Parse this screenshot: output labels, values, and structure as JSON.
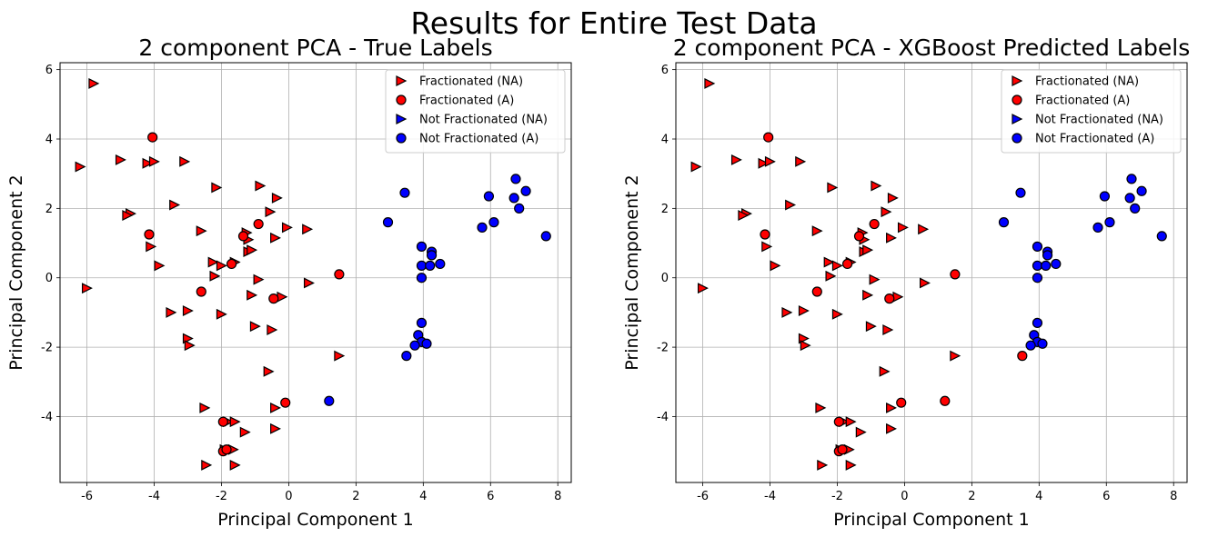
{
  "suptitle": "Results for Entire Test Data",
  "colors": {
    "red": "#ff0000",
    "blue": "#0000ff",
    "grid": "#b0b0b0",
    "edge": "#000000"
  },
  "chart_data": [
    {
      "type": "scatter",
      "title": "2 component PCA - True Labels",
      "xlabel": "Principal Component 1",
      "ylabel": "Principal Component 2",
      "xlim": [
        -6.8,
        8.4
      ],
      "ylim": [
        -5.9,
        6.2
      ],
      "xticks": [
        -6,
        -4,
        -2,
        0,
        2,
        4,
        6,
        8
      ],
      "yticks": [
        -4,
        -2,
        0,
        2,
        4,
        6
      ],
      "grid": true,
      "legend_position": "top-right",
      "series": [
        {
          "name": "Fractionated (NA)",
          "marker": "triangle-right",
          "color": "red",
          "points": [
            [
              -5.8,
              5.6
            ],
            [
              -6.2,
              3.2
            ],
            [
              -5.0,
              3.4
            ],
            [
              -4.2,
              3.3
            ],
            [
              -4.0,
              3.35
            ],
            [
              -3.1,
              3.35
            ],
            [
              -4.7,
              1.85
            ],
            [
              -4.8,
              1.8
            ],
            [
              -3.4,
              2.1
            ],
            [
              -2.15,
              2.6
            ],
            [
              -0.85,
              2.65
            ],
            [
              -0.35,
              2.3
            ],
            [
              -4.1,
              0.9
            ],
            [
              -3.85,
              0.35
            ],
            [
              -2.6,
              1.35
            ],
            [
              -2.25,
              0.45
            ],
            [
              -2.0,
              0.35
            ],
            [
              -2.2,
              0.05
            ],
            [
              -1.6,
              0.45
            ],
            [
              -1.25,
              1.3
            ],
            [
              -1.2,
              1.1
            ],
            [
              -1.2,
              0.75
            ],
            [
              -1.1,
              0.8
            ],
            [
              -0.55,
              1.9
            ],
            [
              -0.4,
              1.15
            ],
            [
              -0.05,
              1.45
            ],
            [
              0.55,
              1.4
            ],
            [
              -6.0,
              -0.3
            ],
            [
              -0.9,
              -0.05
            ],
            [
              0.6,
              -0.15
            ],
            [
              -1.1,
              -0.5
            ],
            [
              -0.2,
              -0.55
            ],
            [
              -3.5,
              -1.0
            ],
            [
              -3.0,
              -0.95
            ],
            [
              -2.0,
              -1.05
            ],
            [
              -1.0,
              -1.4
            ],
            [
              -0.5,
              -1.5
            ],
            [
              -3.0,
              -1.75
            ],
            [
              -2.95,
              -1.95
            ],
            [
              1.5,
              -2.25
            ],
            [
              -0.6,
              -2.7
            ],
            [
              -2.5,
              -3.75
            ],
            [
              -0.4,
              -3.75
            ],
            [
              -1.8,
              -4.15
            ],
            [
              -1.6,
              -4.15
            ],
            [
              -1.3,
              -4.45
            ],
            [
              -0.4,
              -4.35
            ],
            [
              -1.9,
              -4.95
            ],
            [
              -1.65,
              -4.95
            ],
            [
              -2.45,
              -5.4
            ],
            [
              -1.6,
              -5.4
            ]
          ]
        },
        {
          "name": "Fractionated (A)",
          "marker": "circle",
          "color": "red",
          "points": [
            [
              -4.05,
              4.05
            ],
            [
              -4.15,
              1.25
            ],
            [
              -0.9,
              1.55
            ],
            [
              -1.35,
              1.2
            ],
            [
              -1.7,
              0.4
            ],
            [
              1.5,
              0.1
            ],
            [
              -2.6,
              -0.4
            ],
            [
              -0.45,
              -0.6
            ],
            [
              -1.95,
              -4.15
            ],
            [
              -1.95,
              -5.0
            ],
            [
              -1.85,
              -4.95
            ],
            [
              -0.1,
              -3.6
            ]
          ]
        },
        {
          "name": "Not Fractionated (NA)",
          "marker": "triangle-right",
          "color": "blue",
          "points": []
        },
        {
          "name": "Not Fractionated (A)",
          "marker": "circle",
          "color": "blue",
          "points": [
            [
              3.45,
              2.45
            ],
            [
              2.95,
              1.6
            ],
            [
              5.95,
              2.35
            ],
            [
              6.75,
              2.85
            ],
            [
              7.05,
              2.5
            ],
            [
              6.7,
              2.3
            ],
            [
              6.85,
              2.0
            ],
            [
              6.1,
              1.6
            ],
            [
              5.75,
              1.45
            ],
            [
              7.65,
              1.2
            ],
            [
              3.95,
              0.9
            ],
            [
              4.25,
              0.75
            ],
            [
              4.25,
              0.65
            ],
            [
              3.95,
              0.35
            ],
            [
              4.2,
              0.35
            ],
            [
              4.5,
              0.4
            ],
            [
              3.95,
              0.0
            ],
            [
              3.95,
              -1.3
            ],
            [
              3.85,
              -1.65
            ],
            [
              3.95,
              -1.85
            ],
            [
              4.1,
              -1.9
            ],
            [
              3.75,
              -1.95
            ],
            [
              3.5,
              -2.25
            ],
            [
              1.2,
              -3.55
            ]
          ]
        }
      ]
    },
    {
      "type": "scatter",
      "title": "2 component PCA - XGBoost Predicted Labels",
      "xlabel": "Principal Component 1",
      "ylabel": "Principal Component 2",
      "xlim": [
        -6.8,
        8.4
      ],
      "ylim": [
        -5.9,
        6.2
      ],
      "xticks": [
        -6,
        -4,
        -2,
        0,
        2,
        4,
        6,
        8
      ],
      "yticks": [
        -4,
        -2,
        0,
        2,
        4,
        6
      ],
      "grid": true,
      "legend_position": "top-right",
      "series": [
        {
          "name": "Fractionated (NA)",
          "marker": "triangle-right",
          "color": "red",
          "points": [
            [
              -5.8,
              5.6
            ],
            [
              -6.2,
              3.2
            ],
            [
              -5.0,
              3.4
            ],
            [
              -4.2,
              3.3
            ],
            [
              -4.0,
              3.35
            ],
            [
              -3.1,
              3.35
            ],
            [
              -4.7,
              1.85
            ],
            [
              -4.8,
              1.8
            ],
            [
              -3.4,
              2.1
            ],
            [
              -2.15,
              2.6
            ],
            [
              -0.85,
              2.65
            ],
            [
              -0.35,
              2.3
            ],
            [
              -4.1,
              0.9
            ],
            [
              -3.85,
              0.35
            ],
            [
              -2.6,
              1.35
            ],
            [
              -2.25,
              0.45
            ],
            [
              -2.0,
              0.35
            ],
            [
              -2.2,
              0.05
            ],
            [
              -1.6,
              0.45
            ],
            [
              -1.25,
              1.3
            ],
            [
              -1.2,
              1.1
            ],
            [
              -1.2,
              0.75
            ],
            [
              -1.1,
              0.8
            ],
            [
              -0.55,
              1.9
            ],
            [
              -0.4,
              1.15
            ],
            [
              -0.05,
              1.45
            ],
            [
              0.55,
              1.4
            ],
            [
              -6.0,
              -0.3
            ],
            [
              -0.9,
              -0.05
            ],
            [
              0.6,
              -0.15
            ],
            [
              -1.1,
              -0.5
            ],
            [
              -0.2,
              -0.55
            ],
            [
              -3.5,
              -1.0
            ],
            [
              -3.0,
              -0.95
            ],
            [
              -2.0,
              -1.05
            ],
            [
              -1.0,
              -1.4
            ],
            [
              -0.5,
              -1.5
            ],
            [
              -3.0,
              -1.75
            ],
            [
              -2.95,
              -1.95
            ],
            [
              1.5,
              -2.25
            ],
            [
              -0.6,
              -2.7
            ],
            [
              -2.5,
              -3.75
            ],
            [
              -0.4,
              -3.75
            ],
            [
              -1.8,
              -4.15
            ],
            [
              -1.6,
              -4.15
            ],
            [
              -1.3,
              -4.45
            ],
            [
              -0.4,
              -4.35
            ],
            [
              -1.9,
              -4.95
            ],
            [
              -1.65,
              -4.95
            ],
            [
              -2.45,
              -5.4
            ],
            [
              -1.6,
              -5.4
            ]
          ]
        },
        {
          "name": "Fractionated (A)",
          "marker": "circle",
          "color": "red",
          "points": [
            [
              -4.05,
              4.05
            ],
            [
              -4.15,
              1.25
            ],
            [
              -0.9,
              1.55
            ],
            [
              -1.35,
              1.2
            ],
            [
              -1.7,
              0.4
            ],
            [
              1.5,
              0.1
            ],
            [
              -2.6,
              -0.4
            ],
            [
              -0.45,
              -0.6
            ],
            [
              -1.95,
              -4.15
            ],
            [
              -1.95,
              -5.0
            ],
            [
              -1.85,
              -4.95
            ],
            [
              -0.1,
              -3.6
            ],
            [
              1.2,
              -3.55
            ],
            [
              3.5,
              -2.25
            ]
          ]
        },
        {
          "name": "Not Fractionated (NA)",
          "marker": "triangle-right",
          "color": "blue",
          "points": []
        },
        {
          "name": "Not Fractionated (A)",
          "marker": "circle",
          "color": "blue",
          "points": [
            [
              3.45,
              2.45
            ],
            [
              2.95,
              1.6
            ],
            [
              5.95,
              2.35
            ],
            [
              6.75,
              2.85
            ],
            [
              7.05,
              2.5
            ],
            [
              6.7,
              2.3
            ],
            [
              6.85,
              2.0
            ],
            [
              6.1,
              1.6
            ],
            [
              5.75,
              1.45
            ],
            [
              7.65,
              1.2
            ],
            [
              3.95,
              0.9
            ],
            [
              4.25,
              0.75
            ],
            [
              4.25,
              0.65
            ],
            [
              3.95,
              0.35
            ],
            [
              4.2,
              0.35
            ],
            [
              4.5,
              0.4
            ],
            [
              3.95,
              0.0
            ],
            [
              3.95,
              -1.3
            ],
            [
              3.85,
              -1.65
            ],
            [
              3.95,
              -1.85
            ],
            [
              4.1,
              -1.9
            ],
            [
              3.75,
              -1.95
            ]
          ]
        }
      ]
    }
  ]
}
